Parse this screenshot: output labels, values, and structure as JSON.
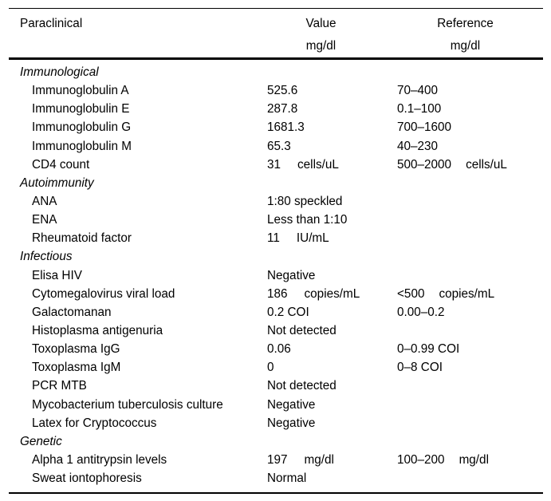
{
  "table": {
    "header": {
      "param": "Paraclinical",
      "value": "Value",
      "value_unit": "mg/dl",
      "reference": "Reference",
      "reference_unit": "mg/dl"
    },
    "sections": [
      {
        "title": "Immunological",
        "rows": [
          {
            "name": "Immunoglobulin A",
            "value": "525.6",
            "value_unit": "",
            "reference": "70–400",
            "reference_unit": ""
          },
          {
            "name": "Immunoglobulin E",
            "value": "287.8",
            "value_unit": "",
            "reference": "0.1–100",
            "reference_unit": ""
          },
          {
            "name": "Immunoglobulin G",
            "value": "1681.3",
            "value_unit": "",
            "reference": "700–1600",
            "reference_unit": ""
          },
          {
            "name": "Immunoglobulin M",
            "value": "65.3",
            "value_unit": "",
            "reference": "40–230",
            "reference_unit": ""
          },
          {
            "name": "CD4 count",
            "value": "31",
            "value_unit": "cells/uL",
            "reference": "500–2000",
            "reference_unit": "cells/uL"
          }
        ]
      },
      {
        "title": "Autoimmunity",
        "rows": [
          {
            "name": "ANA",
            "value": "1:80 speckled",
            "value_unit": "",
            "reference": "",
            "reference_unit": ""
          },
          {
            "name": "ENA",
            "value": "Less than 1:10",
            "value_unit": "",
            "reference": "",
            "reference_unit": ""
          },
          {
            "name": "Rheumatoid factor",
            "value": "11",
            "value_unit": "IU/mL",
            "reference": "",
            "reference_unit": ""
          }
        ]
      },
      {
        "title": "Infectious",
        "rows": [
          {
            "name": "Elisa HIV",
            "value": "Negative",
            "value_unit": "",
            "reference": "",
            "reference_unit": ""
          },
          {
            "name": "Cytomegalovirus viral load",
            "value": "186",
            "value_unit": "copies/mL",
            "reference": "<500",
            "reference_unit": "copies/mL"
          },
          {
            "name": "Galactomanan",
            "value": "0.2 COI",
            "value_unit": "",
            "reference": "0.00–0.2",
            "reference_unit": ""
          },
          {
            "name": "Histoplasma antigenuria",
            "value": "Not detected",
            "value_unit": "",
            "reference": "",
            "reference_unit": ""
          },
          {
            "name": "Toxoplasma IgG",
            "value": "0.06",
            "value_unit": "",
            "reference": "0–0.99 COI",
            "reference_unit": ""
          },
          {
            "name": "Toxoplasma IgM",
            "value": "0",
            "value_unit": "",
            "reference": "0–8 COI",
            "reference_unit": ""
          },
          {
            "name": "PCR MTB",
            "value": "Not detected",
            "value_unit": "",
            "reference": "",
            "reference_unit": ""
          },
          {
            "name": "Mycobacterium tuberculosis culture",
            "value": "Negative",
            "value_unit": "",
            "reference": "",
            "reference_unit": ""
          },
          {
            "name": "Latex for Cryptococcus",
            "value": "Negative",
            "value_unit": "",
            "reference": "",
            "reference_unit": ""
          }
        ]
      },
      {
        "title": "Genetic",
        "rows": [
          {
            "name": "Alpha 1 antitrypsin levels",
            "value": "197",
            "value_unit": "mg/dl",
            "reference": "100–200",
            "reference_unit": "mg/dl"
          },
          {
            "name": "Sweat iontophoresis",
            "value": "Normal",
            "value_unit": "",
            "reference": "",
            "reference_unit": ""
          }
        ]
      }
    ]
  }
}
